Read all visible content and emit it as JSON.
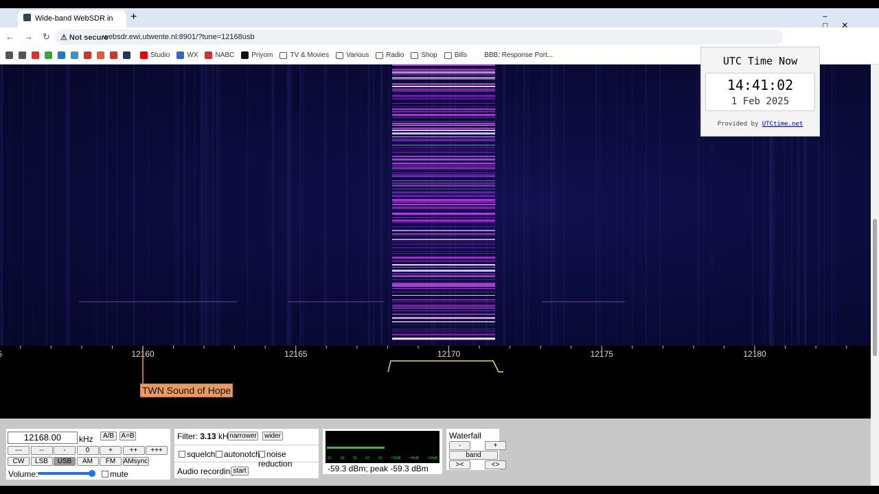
{
  "browser": {
    "tab_title": "Wide-band WebSDR in Ens",
    "security": "Not secure",
    "url": "websdr.ewi.utwente.nl:8901/?tune=12168usb",
    "bookmarks": [
      "Studio",
      "WX",
      "NABC",
      "Priyom",
      "TV & Movies",
      "Various",
      "Radio",
      "Shop",
      "Bills",
      "BBB: Response Port..."
    ]
  },
  "waterfall": {
    "scale_labels": [
      "5",
      "12160",
      "12165",
      "12170",
      "12175",
      "12180"
    ],
    "station_label": "TWN Sound of Hope"
  },
  "utc_widget": {
    "title": "UTC Time Now",
    "time": "14:41:02",
    "date": "1 Feb 2025",
    "provided_by": "Provided by",
    "link": "UTCtime.net"
  },
  "controls": {
    "frequency": "12168.00",
    "unit": "kHz",
    "ab_buttons": [
      "A/B",
      "A=B"
    ],
    "step_buttons": [
      "---",
      "--",
      "-",
      "0",
      "+",
      "++",
      "+++"
    ],
    "mode_buttons": [
      "CW",
      "LSB",
      "USB",
      "AM",
      "FM",
      "AMsync"
    ],
    "volume": "Volume:",
    "mute": "mute"
  },
  "filter": {
    "label": "Filter:",
    "bandwidth": "3.13",
    "unit": "kHz",
    "buttons": [
      "narrower",
      "wider"
    ],
    "options": [
      "squelch",
      "autonotch",
      "noise reduction"
    ],
    "audio_recording": "Audio recording",
    "start": "start"
  },
  "smeter": {
    "scale": [
      "S1",
      "S3",
      "S5",
      "S7",
      "S9",
      "+20dB",
      "+40dB",
      "+60dB"
    ],
    "reading": "-59.3 dBm; peak  -59.3 dBm"
  },
  "zoom": {
    "title": "Waterfall zoom",
    "buttons": [
      "-",
      "+",
      "band",
      "><",
      "<>"
    ]
  }
}
